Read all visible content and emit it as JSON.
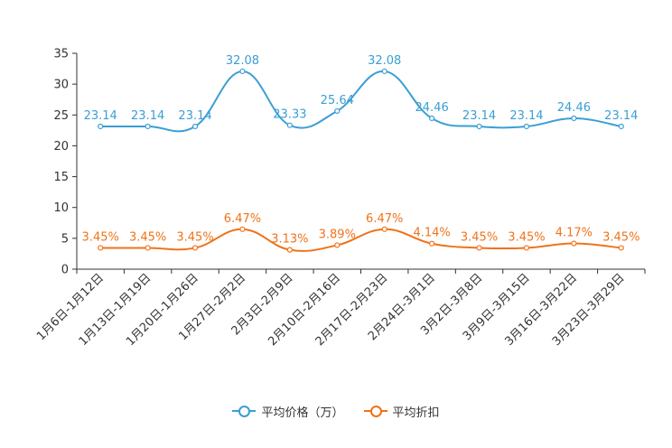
{
  "chart_data": {
    "type": "line",
    "categories": [
      "1月6日-1月12日",
      "1月13日-1月19日",
      "1月20日-1月26日",
      "1月27日-2月2日",
      "2月3日-2月9日",
      "2月10日-2月16日",
      "2月17日-2月23日",
      "2月24日-3月1日",
      "3月2日-3月8日",
      "3月9日-3月15日",
      "3月16日-3月22日",
      "3月23日-3月29日"
    ],
    "ylim": [
      0,
      35
    ],
    "yticks": [
      "0",
      "5",
      "10",
      "15",
      "20",
      "25",
      "30",
      "35"
    ],
    "series": [
      {
        "name": "平均价格（万）",
        "color": "#3a9fd4",
        "values": [
          23.14,
          23.14,
          23.14,
          32.08,
          23.33,
          25.64,
          32.08,
          24.46,
          23.14,
          23.14,
          24.46,
          23.14
        ],
        "labels": [
          "23.14",
          "23.14",
          "23.14",
          "32.08",
          "23.33",
          "25.64",
          "32.08",
          "24.46",
          "23.14",
          "23.14",
          "24.46",
          "23.14"
        ]
      },
      {
        "name": "平均折扣",
        "color": "#f07318",
        "values": [
          3.45,
          3.45,
          3.45,
          6.47,
          3.13,
          3.89,
          6.47,
          4.14,
          3.45,
          3.45,
          4.17,
          3.45
        ],
        "labels": [
          "3.45%",
          "3.45%",
          "3.45%",
          "6.47%",
          "3.13%",
          "3.89%",
          "6.47%",
          "4.14%",
          "3.45%",
          "3.45%",
          "4.17%",
          "3.45%"
        ]
      }
    ]
  },
  "legend": {
    "items": [
      {
        "label": "平均价格（万）",
        "color": "#3a9fd4"
      },
      {
        "label": "平均折扣",
        "color": "#f07318"
      }
    ]
  }
}
